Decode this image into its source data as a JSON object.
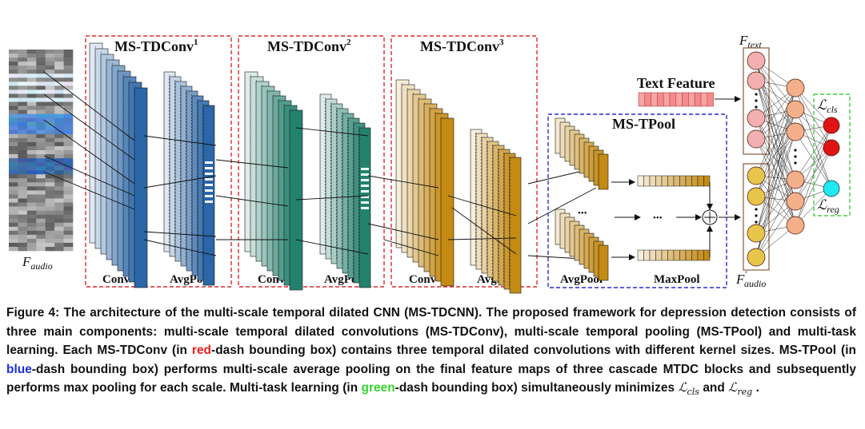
{
  "figure": {
    "blocks": [
      {
        "title": "MS-TDConv",
        "sup": "1",
        "left_label": "Conv",
        "right_label": "AvgPool"
      },
      {
        "title": "MS-TDConv",
        "sup": "2",
        "left_label": "Conv",
        "right_label": "AvgPool"
      },
      {
        "title": "MS-TDConv",
        "sup": "3",
        "left_label": "Conv",
        "right_label": "AvgPool"
      }
    ],
    "input_label": "F",
    "input_sub": "audio",
    "tpool": {
      "title": "MS-TPool",
      "avgpool_label": "AvgPool",
      "maxpool_label": "MaxPool",
      "dots": "•••"
    },
    "text_feature_label": "Text Feature",
    "f_text": {
      "main": "F",
      "sub": "text"
    },
    "f_audio_prime": {
      "main": "F",
      "prime": "′",
      "sub": "audio"
    },
    "loss_cls": {
      "main": "ℒ",
      "sub": "cls"
    },
    "loss_reg": {
      "main": "ℒ",
      "sub": "reg"
    },
    "colors": {
      "red_box": "#e0282a",
      "blue_box": "#2a2ad6",
      "green_box": "#40d040",
      "block1": "#2a66a8",
      "block2": "#23826e",
      "block3": "#c48a12",
      "text_feature": "#f07878",
      "pink_node": "#f4b0b0",
      "yellow_node": "#e6c54a",
      "orange_node": "#f4b08a",
      "red_node": "#e01414",
      "cyan_node": "#20e8f0"
    }
  },
  "caption": {
    "p1": "Figure 4: The architecture of the multi-scale temporal dilated CNN (MS-TDCNN). The proposed framework for depression detection consists of three main components: multi-scale temporal dilated convolutions (MS-TDConv), multi-scale temporal pooling (MS-TPool) and multi-task learning. Each MS-TDConv (in ",
    "red_word": "red",
    "p2": "-dash bounding box) contains three temporal dilated convolutions with different kernel sizes. MS-TPool (in ",
    "blue_word": "blue",
    "p3": "-dash bounding box) performs multi-scale average pooling on the final feature maps of three cascade MTDC blocks and subsequently performs max pooling for each scale. Multi-task learning (in ",
    "green_word": "green",
    "p4": "-dash bounding box) simultaneously minimizes ",
    "loss1_main": "ℒ",
    "loss1_sub": "cls",
    "and_word": " and ",
    "loss2_main": "ℒ",
    "loss2_sub": "reg",
    "end": " ."
  }
}
